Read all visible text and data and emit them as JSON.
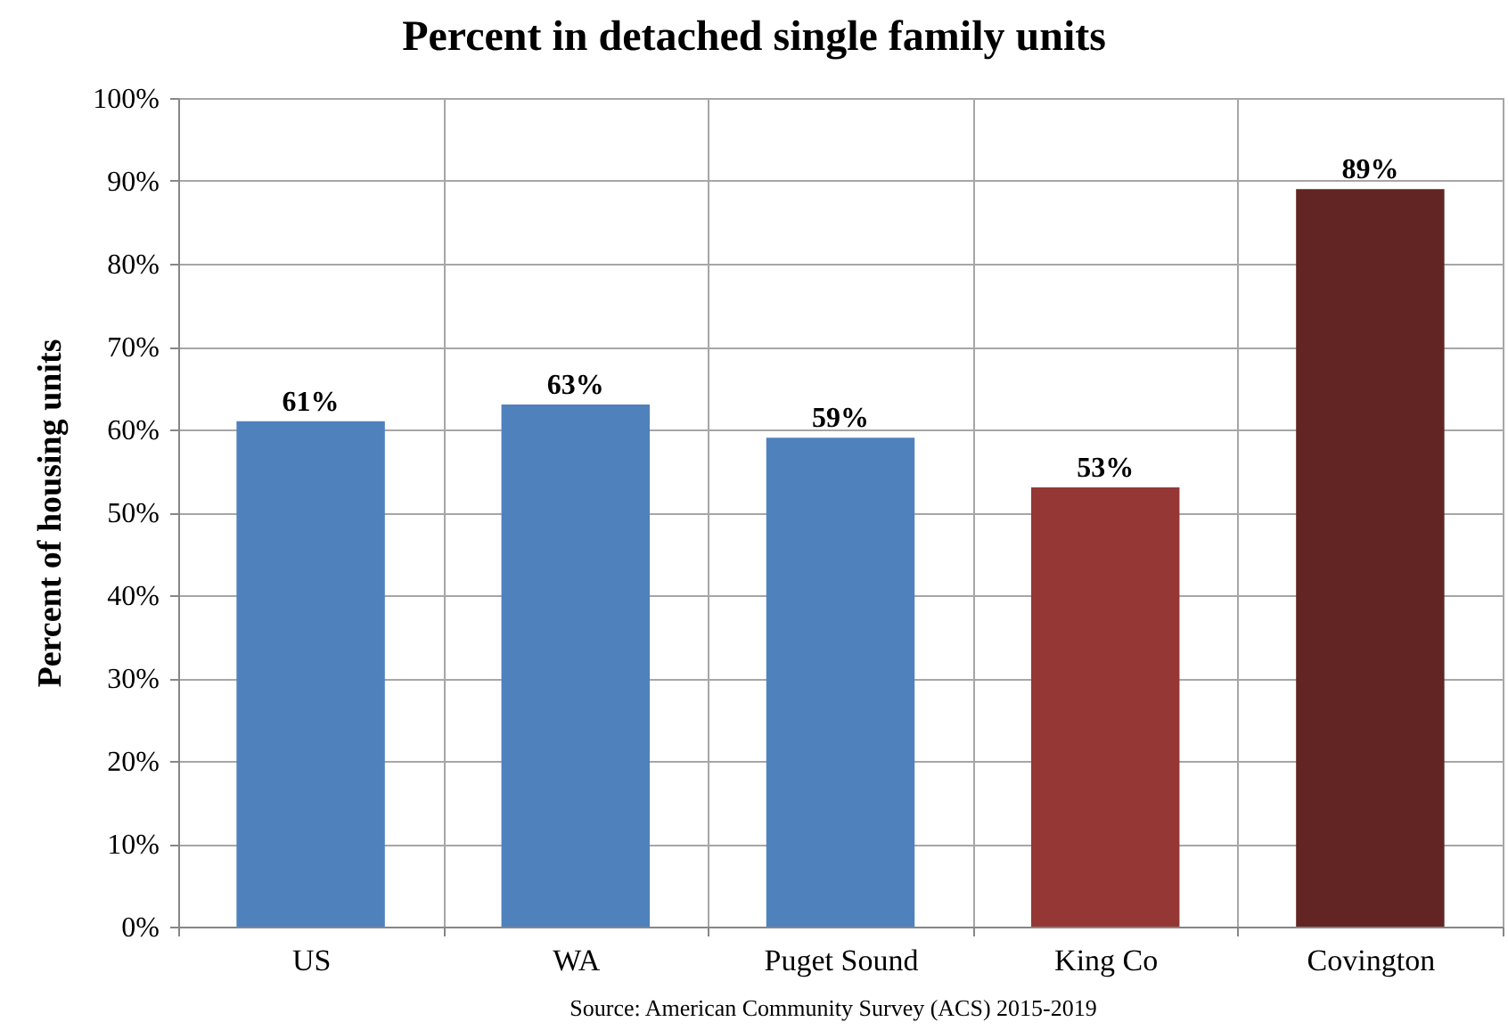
{
  "chart_data": {
    "type": "bar",
    "title": "Percent in detached single family units",
    "ylabel": "Percent of housing units",
    "categories": [
      "US",
      "WA",
      "Puget Sound",
      "King Co",
      "Covington"
    ],
    "values": [
      61,
      63,
      59,
      53,
      89
    ],
    "colors": [
      "#4f81bd",
      "#4f81bd",
      "#4f81bd",
      "#953735",
      "#632523"
    ],
    "value_labels": [
      "61%",
      "63%",
      "59%",
      "53%",
      "89%"
    ],
    "ylim": [
      0,
      100
    ],
    "yticks": [
      {
        "value": 0,
        "label": "0%"
      },
      {
        "value": 10,
        "label": "10%"
      },
      {
        "value": 20,
        "label": "20%"
      },
      {
        "value": 30,
        "label": "30%"
      },
      {
        "value": 40,
        "label": "40%"
      },
      {
        "value": 50,
        "label": "50%"
      },
      {
        "value": 60,
        "label": "60%"
      },
      {
        "value": 70,
        "label": "70%"
      },
      {
        "value": 80,
        "label": "80%"
      },
      {
        "value": 90,
        "label": "90%"
      },
      {
        "value": 100,
        "label": "100%"
      }
    ],
    "grid": true,
    "annotations": [
      "Source: American Community Survey (ACS) 2015-2019"
    ]
  }
}
